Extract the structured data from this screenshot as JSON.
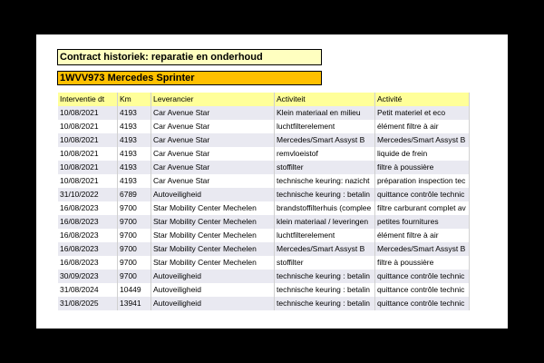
{
  "header": {
    "title": "Contract historiek: reparatie en onderhoud",
    "vehicle": "1WVV973  Mercedes  Sprinter"
  },
  "table": {
    "columns": [
      "Interventie dt",
      "Km",
      "Leverancier",
      "Activiteit",
      "Activité"
    ],
    "rows": [
      [
        "10/08/2021",
        "4193",
        "Car Avenue Star",
        "Klein materiaal en milieu",
        "Petit materiel et eco"
      ],
      [
        "10/08/2021",
        "4193",
        "Car Avenue Star",
        "luchtfilterelement",
        "élément filtre à air"
      ],
      [
        "10/08/2021",
        "4193",
        "Car Avenue Star",
        "Mercedes/Smart Assyst B",
        "Mercedes/Smart Assyst B"
      ],
      [
        "10/08/2021",
        "4193",
        "Car Avenue Star",
        "remvloeistof",
        "liquide de frein"
      ],
      [
        "10/08/2021",
        "4193",
        "Car Avenue Star",
        "stoffilter",
        "filtre à poussière"
      ],
      [
        "10/08/2021",
        "4193",
        "Car Avenue Star",
        "technische keuring: nazicht",
        "préparation inspection tec"
      ],
      [
        "31/10/2022",
        "6789",
        "Autoveiligheid",
        "technische keuring : betalin",
        "quittance contrôle technic"
      ],
      [
        "16/08/2023",
        "9700",
        "Star Mobility Center Mechelen",
        "brandstoffilterhuis (complee",
        "filtre carburant complet av"
      ],
      [
        "16/08/2023",
        "9700",
        "Star Mobility Center Mechelen",
        "klein materiaal / leveringen",
        "petites fournitures"
      ],
      [
        "16/08/2023",
        "9700",
        "Star Mobility Center Mechelen",
        "luchtfilterelement",
        "élément filtre à air"
      ],
      [
        "16/08/2023",
        "9700",
        "Star Mobility Center Mechelen",
        "Mercedes/Smart Assyst B",
        "Mercedes/Smart Assyst B"
      ],
      [
        "16/08/2023",
        "9700",
        "Star Mobility Center Mechelen",
        "stoffilter",
        "filtre à poussière"
      ],
      [
        "30/09/2023",
        "9700",
        "Autoveiligheid",
        "technische keuring : betalin",
        "quittance contrôle technic"
      ],
      [
        "31/08/2024",
        "10449",
        "Autoveiligheid",
        "technische keuring : betalin",
        "quittance contrôle technic"
      ],
      [
        "31/08/2025",
        "13941",
        "Autoveiligheid",
        "technische keuring : betalin",
        "quittance contrôle technic"
      ]
    ]
  }
}
